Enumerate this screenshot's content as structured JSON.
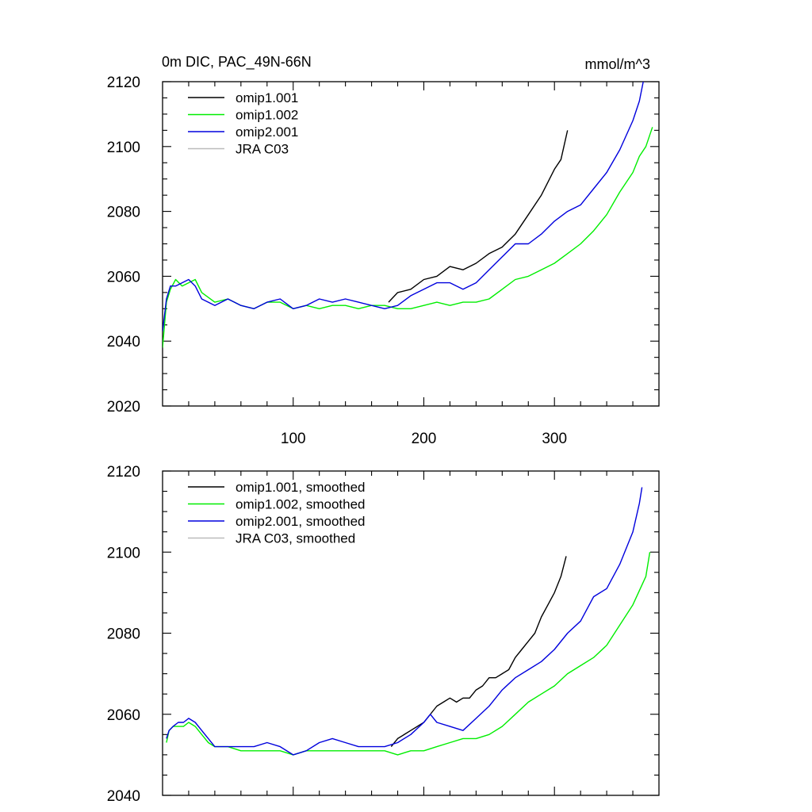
{
  "chart_data": [
    {
      "type": "line",
      "title": "0m DIC, PAC_49N-66N",
      "units": "mmol/m^3",
      "xlabel": "",
      "ylabel": "",
      "xlim": [
        0,
        380
      ],
      "ylim": [
        2020,
        2120
      ],
      "xticks": [
        100,
        200,
        300
      ],
      "xtick_labels": [
        "100",
        "200",
        "300"
      ],
      "yticks": [
        2020,
        2040,
        2060,
        2080,
        2100,
        2120
      ],
      "ytick_labels": [
        "2020",
        "2040",
        "2060",
        "2080",
        "2100",
        "2120"
      ],
      "grid": false,
      "legend_position": "top-left",
      "series": [
        {
          "name": "omip1.001",
          "color": "#000000",
          "x": [
            173,
            180,
            190,
            200,
            210,
            220,
            230,
            240,
            250,
            260,
            270,
            280,
            290,
            300,
            305,
            310
          ],
          "y": [
            2052,
            2055,
            2056,
            2059,
            2060,
            2063,
            2062,
            2064,
            2067,
            2069,
            2073,
            2079,
            2085,
            2093,
            2096,
            2105
          ]
        },
        {
          "name": "omip1.002",
          "color": "#00ee00",
          "x": [
            0,
            3,
            6,
            10,
            15,
            20,
            25,
            30,
            40,
            50,
            60,
            70,
            80,
            90,
            100,
            110,
            120,
            130,
            140,
            150,
            160,
            170,
            180,
            190,
            200,
            210,
            220,
            230,
            240,
            250,
            260,
            270,
            280,
            290,
            300,
            310,
            320,
            330,
            340,
            350,
            360,
            365,
            370,
            375
          ],
          "y": [
            2038,
            2052,
            2056,
            2059,
            2057,
            2058,
            2059,
            2055,
            2052,
            2053,
            2051,
            2050,
            2052,
            2052,
            2050,
            2051,
            2050,
            2051,
            2051,
            2050,
            2051,
            2051,
            2050,
            2050,
            2051,
            2052,
            2051,
            2052,
            2052,
            2053,
            2056,
            2059,
            2060,
            2062,
            2064,
            2067,
            2070,
            2074,
            2079,
            2086,
            2092,
            2097,
            2100,
            2106
          ]
        },
        {
          "name": "omip2.001",
          "color": "#0000dd",
          "x": [
            0,
            3,
            6,
            10,
            15,
            20,
            25,
            30,
            40,
            50,
            60,
            70,
            80,
            90,
            100,
            110,
            120,
            130,
            140,
            150,
            160,
            170,
            180,
            190,
            200,
            210,
            220,
            230,
            240,
            250,
            260,
            270,
            280,
            290,
            300,
            310,
            320,
            330,
            340,
            350,
            360,
            365,
            368
          ],
          "y": [
            2043,
            2053,
            2057,
            2057,
            2058,
            2059,
            2057,
            2053,
            2051,
            2053,
            2051,
            2050,
            2052,
            2053,
            2050,
            2051,
            2053,
            2052,
            2053,
            2052,
            2051,
            2050,
            2051,
            2054,
            2056,
            2058,
            2058,
            2056,
            2058,
            2062,
            2066,
            2070,
            2070,
            2073,
            2077,
            2080,
            2082,
            2087,
            2092,
            2099,
            2108,
            2114,
            2120
          ]
        },
        {
          "name": "JRA C03",
          "color": "#bbbbbb",
          "x": [],
          "y": []
        }
      ]
    },
    {
      "type": "line",
      "title": "",
      "xlabel": "",
      "ylabel": "",
      "xlim": [
        0,
        380
      ],
      "ylim": [
        2040,
        2120
      ],
      "xticks": [
        100,
        200,
        300
      ],
      "xtick_labels": [],
      "yticks": [
        2040,
        2060,
        2080,
        2100,
        2120
      ],
      "ytick_labels": [
        "2040",
        "2060",
        "2080",
        "2100",
        "2120"
      ],
      "grid": false,
      "legend_position": "top-left",
      "series": [
        {
          "name": "omip1.001, smoothed",
          "color": "#000000",
          "x": [
            175,
            180,
            190,
            200,
            210,
            215,
            220,
            225,
            230,
            235,
            240,
            245,
            250,
            255,
            260,
            265,
            270,
            275,
            280,
            285,
            290,
            295,
            300,
            305,
            309
          ],
          "y": [
            2052,
            2054,
            2056,
            2058,
            2062,
            2063,
            2064,
            2063,
            2064,
            2064,
            2066,
            2067,
            2069,
            2069,
            2070,
            2071,
            2074,
            2076,
            2078,
            2080,
            2084,
            2087,
            2090,
            2094,
            2099
          ]
        },
        {
          "name": "omip1.002, smoothed",
          "color": "#00ee00",
          "x": [
            3,
            5,
            8,
            12,
            16,
            20,
            25,
            30,
            35,
            40,
            50,
            60,
            70,
            80,
            90,
            100,
            110,
            120,
            130,
            140,
            150,
            160,
            170,
            180,
            190,
            200,
            210,
            220,
            230,
            240,
            250,
            260,
            270,
            280,
            290,
            300,
            310,
            320,
            330,
            340,
            350,
            360,
            370,
            373
          ],
          "y": [
            2053,
            2056,
            2057,
            2057,
            2057,
            2058,
            2057,
            2055,
            2053,
            2052,
            2052,
            2051,
            2051,
            2051,
            2051,
            2050,
            2051,
            2051,
            2051,
            2051,
            2051,
            2051,
            2051,
            2050,
            2051,
            2051,
            2052,
            2053,
            2054,
            2054,
            2055,
            2057,
            2060,
            2063,
            2065,
            2067,
            2070,
            2072,
            2074,
            2077,
            2082,
            2087,
            2094,
            2100
          ]
        },
        {
          "name": "omip2.001, smoothed",
          "color": "#0000dd",
          "x": [
            3,
            5,
            8,
            12,
            16,
            20,
            25,
            30,
            35,
            40,
            50,
            60,
            70,
            80,
            90,
            100,
            110,
            120,
            130,
            140,
            150,
            160,
            170,
            180,
            190,
            200,
            205,
            210,
            220,
            230,
            240,
            250,
            260,
            270,
            280,
            290,
            300,
            310,
            320,
            330,
            340,
            350,
            360,
            365,
            367
          ],
          "y": [
            2054,
            2056,
            2057,
            2058,
            2058,
            2059,
            2058,
            2056,
            2054,
            2052,
            2052,
            2052,
            2052,
            2053,
            2052,
            2050,
            2051,
            2053,
            2054,
            2053,
            2052,
            2052,
            2052,
            2053,
            2055,
            2058,
            2060,
            2058,
            2057,
            2056,
            2059,
            2062,
            2066,
            2069,
            2071,
            2073,
            2076,
            2080,
            2083,
            2089,
            2091,
            2097,
            2105,
            2112,
            2116
          ]
        },
        {
          "name": "JRA C03, smoothed",
          "color": "#bbbbbb",
          "x": [],
          "y": []
        }
      ]
    }
  ]
}
